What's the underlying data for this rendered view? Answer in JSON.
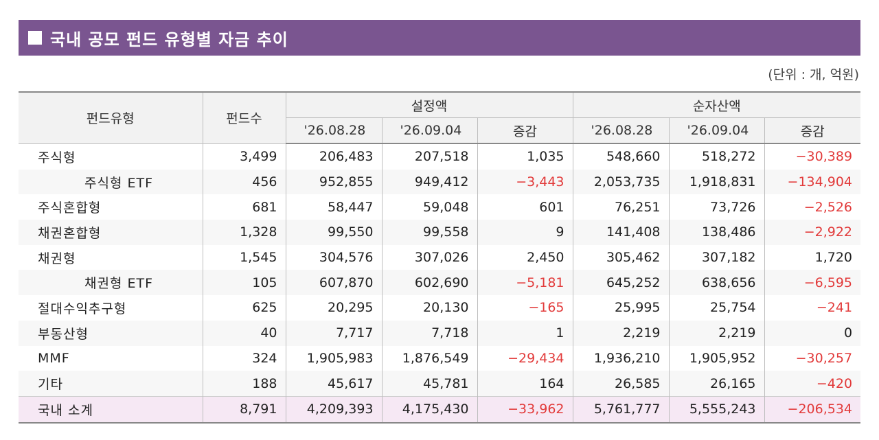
{
  "title": "국내 공모 펀드 유형별 자금 추이",
  "unit": "(단위 : 개, 억원)",
  "headers": {
    "fund_type": "펀드유형",
    "fund_count": "펀드수",
    "setup": "설정액",
    "net_assets": "순자산액",
    "date1": "'26.08.28",
    "date2": "'26.09.04",
    "change": "증감"
  },
  "rows": [
    {
      "name": "주식형",
      "count": "3,499",
      "s1": "206,483",
      "s2": "207,518",
      "sd": "1,035",
      "n1": "548,660",
      "n2": "518,272",
      "nd": "−30,389"
    },
    {
      "name": "주식형 ETF",
      "count": "456",
      "s1": "952,855",
      "s2": "949,412",
      "sd": "−3,443",
      "n1": "2,053,735",
      "n2": "1,918,831",
      "nd": "−134,904"
    },
    {
      "name": "주식혼합형",
      "count": "681",
      "s1": "58,447",
      "s2": "59,048",
      "sd": "601",
      "n1": "76,251",
      "n2": "73,726",
      "nd": "−2,526"
    },
    {
      "name": "채권혼합형",
      "count": "1,328",
      "s1": "99,550",
      "s2": "99,558",
      "sd": "9",
      "n1": "141,408",
      "n2": "138,486",
      "nd": "−2,922"
    },
    {
      "name": "채권형",
      "count": "1,545",
      "s1": "304,576",
      "s2": "307,026",
      "sd": "2,450",
      "n1": "305,462",
      "n2": "307,182",
      "nd": "1,720"
    },
    {
      "name": "채권형 ETF",
      "count": "105",
      "s1": "607,870",
      "s2": "602,690",
      "sd": "−5,181",
      "n1": "645,252",
      "n2": "638,656",
      "nd": "−6,595"
    },
    {
      "name": "절대수익추구형",
      "count": "625",
      "s1": "20,295",
      "s2": "20,130",
      "sd": "−165",
      "n1": "25,995",
      "n2": "25,754",
      "nd": "−241"
    },
    {
      "name": "부동산형",
      "count": "40",
      "s1": "7,717",
      "s2": "7,718",
      "sd": "1",
      "n1": "2,219",
      "n2": "2,219",
      "nd": "0"
    },
    {
      "name": "MMF",
      "count": "324",
      "s1": "1,905,983",
      "s2": "1,876,549",
      "sd": "−29,434",
      "n1": "1,936,210",
      "n2": "1,905,952",
      "nd": "−30,257"
    },
    {
      "name": "기타",
      "count": "188",
      "s1": "45,617",
      "s2": "45,781",
      "sd": "164",
      "n1": "26,585",
      "n2": "26,165",
      "nd": "−420"
    },
    {
      "name": "국내 소계",
      "count": "8,791",
      "s1": "4,209,393",
      "s2": "4,175,430",
      "sd": "−33,962",
      "n1": "5,761,777",
      "n2": "5,555,243",
      "nd": "−206,534"
    }
  ],
  "colors": {
    "title_bg": "#7a5590",
    "negative": "#e23a3a",
    "total_bg": "#f6e8f4"
  }
}
